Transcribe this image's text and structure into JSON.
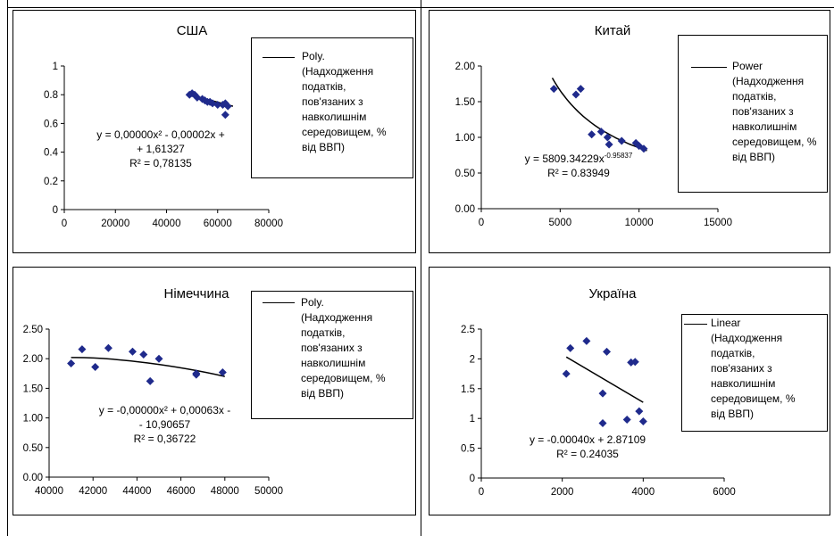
{
  "chart_data": [
    {
      "type": "scatter",
      "title": "США",
      "x": [
        49000,
        50000,
        51000,
        52000,
        54000,
        55000,
        56000,
        57000,
        58000,
        60000,
        62000,
        63000,
        63000,
        64000
      ],
      "y": [
        0.8,
        0.81,
        0.8,
        0.78,
        0.77,
        0.76,
        0.75,
        0.75,
        0.74,
        0.73,
        0.73,
        0.74,
        0.66,
        0.72
      ],
      "xlim": [
        0,
        80000
      ],
      "ylim": [
        0,
        1
      ],
      "xticks": [
        "0",
        "20000",
        "40000",
        "60000",
        "80000"
      ],
      "yticks": [
        "0",
        "0.2",
        "0.4",
        "0.6",
        "0.8",
        "1"
      ],
      "trendline": {
        "kind": "poly",
        "xrange": [
          49000,
          66000
        ],
        "yrange": [
          0.8,
          0.72
        ]
      },
      "equation": [
        "y = 0,00000x² - 0,00002x +",
        "+ 1,61327"
      ],
      "r2": "R² = 0,78135",
      "legend": [
        "Poly.",
        "(Надходження",
        "податків,",
        "пов'язаних з",
        "навколишнім",
        "середовищем, %",
        "від ВВП)"
      ]
    },
    {
      "type": "scatter",
      "title": "Китай",
      "x": [
        4600,
        6000,
        6300,
        7000,
        7600,
        8000,
        8100,
        8900,
        9800,
        10000,
        10300
      ],
      "y": [
        1.68,
        1.6,
        1.68,
        1.04,
        1.08,
        1.0,
        0.9,
        0.95,
        0.92,
        0.88,
        0.84
      ],
      "xlim": [
        0,
        15000
      ],
      "ylim": [
        0,
        2
      ],
      "xticks": [
        "0",
        "5000",
        "10000",
        "15000"
      ],
      "yticks": [
        "0.00",
        "0.50",
        "1.00",
        "1.50",
        "2.00"
      ],
      "trendline": {
        "kind": "power",
        "a": 5809.34229,
        "b": -0.95837,
        "xrange": [
          4500,
          10500
        ]
      },
      "equation_main": "y = 5809.34229x",
      "equation_exp": "-0.95837",
      "r2": "R² = 0.83949",
      "legend": [
        "Power",
        "(Надходження",
        "податків,",
        "пов'язаних з",
        "навколишнім",
        "середовищем, %",
        "від ВВП)"
      ]
    },
    {
      "type": "scatter",
      "title": "Німеччина",
      "x": [
        41000,
        41500,
        42100,
        42700,
        43800,
        44300,
        44600,
        45000,
        46700,
        46700,
        47900
      ],
      "y": [
        1.92,
        2.16,
        1.86,
        2.18,
        2.12,
        2.07,
        1.62,
        2.0,
        1.75,
        1.73,
        1.77
      ],
      "xlim": [
        40000,
        50000
      ],
      "ylim": [
        0,
        2.5
      ],
      "xticks": [
        "40000",
        "42000",
        "44000",
        "46000",
        "48000",
        "50000"
      ],
      "yticks": [
        "0.00",
        "0.50",
        "1.00",
        "1.50",
        "2.00",
        "2.50"
      ],
      "trendline": {
        "kind": "quadratic",
        "points": [
          [
            41000,
            2.02
          ],
          [
            43000,
            2.03
          ],
          [
            46000,
            1.87
          ],
          [
            48000,
            1.7
          ]
        ]
      },
      "equation": [
        "y = -0,00000x² + 0,00063x -",
        "- 10,90657"
      ],
      "r2": "R² = 0,36722",
      "legend": [
        "Poly.",
        "(Надходження",
        "податків,",
        "пов'язаних з",
        "навколишнім",
        "середовищем, %",
        "від ВВП)"
      ]
    },
    {
      "type": "scatter",
      "title": "Україна",
      "x": [
        2100,
        2200,
        2600,
        3000,
        3000,
        3100,
        3600,
        3700,
        3800,
        3900,
        4000
      ],
      "y": [
        1.75,
        2.18,
        2.3,
        0.92,
        1.42,
        2.12,
        0.98,
        1.94,
        1.95,
        1.12,
        0.95
      ],
      "xlim": [
        0,
        6000
      ],
      "ylim": [
        0,
        2.5
      ],
      "xticks": [
        "0",
        "2000",
        "4000",
        "6000"
      ],
      "yticks": [
        "0",
        "0.5",
        "1",
        "1.5",
        "2",
        "2.5"
      ],
      "trendline": {
        "kind": "linear",
        "slope": -0.0004,
        "intercept": 2.87109,
        "xrange": [
          2100,
          4000
        ]
      },
      "equation": [
        "y = -0.00040x + 2.87109"
      ],
      "r2": "R² = 0.24035",
      "legend": [
        "Linear",
        "(Надходження",
        "податків,",
        "пов'язаних з",
        "навколишнім",
        "середовищем, %",
        "від ВВП)"
      ]
    }
  ],
  "colors": {
    "marker": "#1F2A8C",
    "line": "#000000",
    "frame": "#000000"
  }
}
